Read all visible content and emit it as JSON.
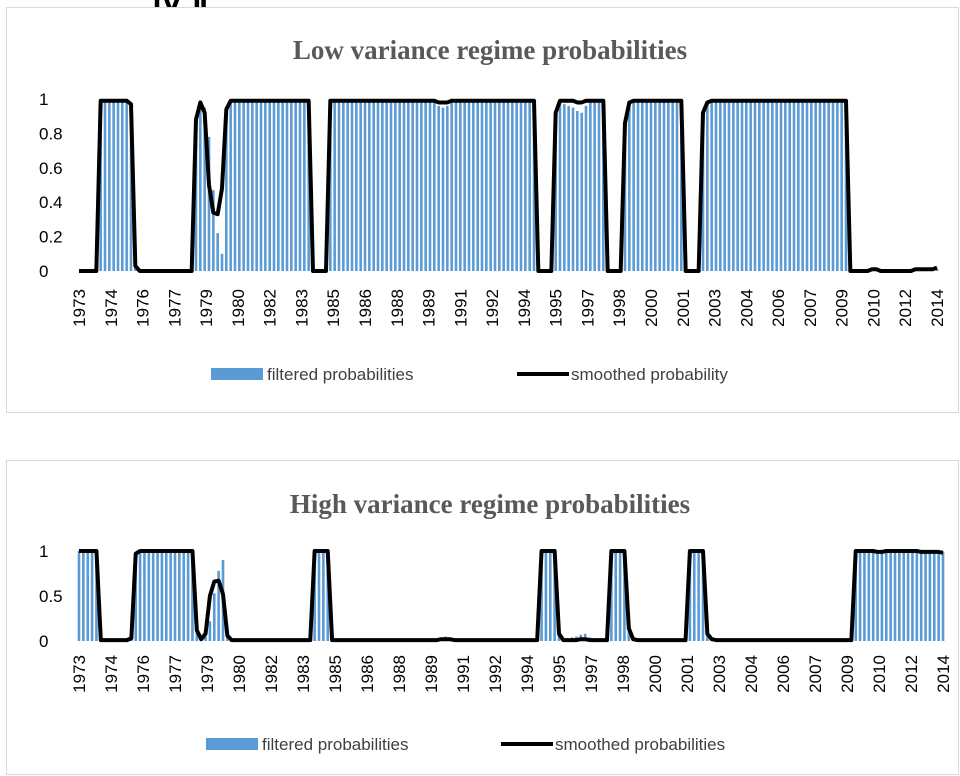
{
  "header_fragment": "Ⅳ.Ⅱ",
  "colors": {
    "bar": "#5b9bd5",
    "line": "#000000",
    "title": "#595959",
    "border": "#d9d9d9"
  },
  "chart_data": [
    {
      "type": "bar",
      "title": "Low variance regime probabilities",
      "xlabel": "",
      "ylabel": "",
      "ylim": [
        0,
        1
      ],
      "yticks": [
        "0",
        "0.2",
        "0.4",
        "0.6",
        "0.8",
        "1"
      ],
      "ytick_values": [
        0,
        0.2,
        0.4,
        0.6,
        0.8,
        1
      ],
      "x_labels": [
        "1973",
        "1974",
        "1976",
        "1977",
        "1979",
        "1980",
        "1982",
        "1983",
        "1985",
        "1986",
        "1988",
        "1989",
        "1991",
        "1992",
        "1994",
        "1995",
        "1997",
        "1998",
        "2000",
        "2001",
        "2003",
        "2004",
        "2006",
        "2007",
        "2009",
        "2010",
        "2012",
        "2014"
      ],
      "legend_position": "bottom",
      "series": [
        {
          "name": "filtered probabilities",
          "kind": "bar",
          "values": [
            0,
            0,
            0,
            0,
            0,
            0.99,
            0.99,
            0.99,
            0.99,
            0.99,
            0.99,
            0.99,
            0.97,
            0.03,
            0,
            0,
            0,
            0,
            0,
            0,
            0,
            0,
            0,
            0,
            0,
            0,
            0,
            0.9,
            0.97,
            0.95,
            0.78,
            0.47,
            0.22,
            0.1,
            0.92,
            0.98,
            0.99,
            0.99,
            0.99,
            0.99,
            0.99,
            0.99,
            0.99,
            0.99,
            0.99,
            0.99,
            0.99,
            0.99,
            0.99,
            0.99,
            0.99,
            0.99,
            0.99,
            0.99,
            0,
            0,
            0,
            0,
            0.99,
            0.99,
            0.99,
            0.99,
            0.99,
            0.99,
            0.99,
            0.99,
            0.99,
            0.99,
            0.99,
            0.99,
            0.99,
            0.99,
            0.99,
            0.99,
            0.99,
            0.99,
            0.99,
            0.99,
            0.99,
            0.99,
            0.99,
            0.99,
            0.99,
            0.96,
            0.95,
            0.96,
            0.98,
            0.99,
            0.99,
            0.99,
            0.99,
            0.99,
            0.99,
            0.99,
            0.99,
            0.99,
            0.99,
            0.99,
            0.99,
            0.99,
            0.99,
            0.99,
            0.99,
            0.99,
            0.99,
            0.99,
            0,
            0,
            0,
            0,
            0.9,
            0.98,
            0.97,
            0.96,
            0.95,
            0.93,
            0.92,
            0.96,
            0.98,
            0.99,
            0.99,
            0.99,
            0,
            0,
            0,
            0,
            0.85,
            0.96,
            0.98,
            0.99,
            0.99,
            0.99,
            0.99,
            0.99,
            0.99,
            0.99,
            0.99,
            0.99,
            0.99,
            0.99,
            0,
            0,
            0,
            0,
            0.9,
            0.97,
            0.99,
            0.99,
            0.99,
            0.99,
            0.99,
            0.99,
            0.99,
            0.99,
            0.99,
            0.99,
            0.99,
            0.99,
            0.99,
            0.99,
            0.99,
            0.99,
            0.99,
            0.99,
            0.99,
            0.99,
            0.99,
            0.99,
            0.99,
            0.99,
            0.99,
            0.99,
            0.99,
            0.99,
            0.99,
            0.99,
            0.99,
            0.99,
            0,
            0,
            0,
            0,
            0,
            0,
            0,
            0,
            0,
            0,
            0,
            0,
            0,
            0,
            0,
            0,
            0,
            0,
            0,
            0,
            0.01
          ]
        },
        {
          "name": "smoothed probability",
          "kind": "line",
          "values": [
            0,
            0,
            0,
            0,
            0,
            0.99,
            0.99,
            0.99,
            0.99,
            0.99,
            0.99,
            0.99,
            0.97,
            0.03,
            0,
            0,
            0,
            0,
            0,
            0,
            0,
            0,
            0,
            0,
            0,
            0,
            0,
            0.88,
            0.98,
            0.92,
            0.5,
            0.34,
            0.33,
            0.48,
            0.94,
            0.99,
            0.99,
            0.99,
            0.99,
            0.99,
            0.99,
            0.99,
            0.99,
            0.99,
            0.99,
            0.99,
            0.99,
            0.99,
            0.99,
            0.99,
            0.99,
            0.99,
            0.99,
            0.99,
            0,
            0,
            0,
            0,
            0.99,
            0.99,
            0.99,
            0.99,
            0.99,
            0.99,
            0.99,
            0.99,
            0.99,
            0.99,
            0.99,
            0.99,
            0.99,
            0.99,
            0.99,
            0.99,
            0.99,
            0.99,
            0.99,
            0.99,
            0.99,
            0.99,
            0.99,
            0.99,
            0.99,
            0.98,
            0.98,
            0.98,
            0.99,
            0.99,
            0.99,
            0.99,
            0.99,
            0.99,
            0.99,
            0.99,
            0.99,
            0.99,
            0.99,
            0.99,
            0.99,
            0.99,
            0.99,
            0.99,
            0.99,
            0.99,
            0.99,
            0.99,
            0,
            0,
            0,
            0,
            0.92,
            0.99,
            0.99,
            0.99,
            0.99,
            0.98,
            0.98,
            0.99,
            0.99,
            0.99,
            0.99,
            0.99,
            0,
            0,
            0,
            0,
            0.86,
            0.98,
            0.99,
            0.99,
            0.99,
            0.99,
            0.99,
            0.99,
            0.99,
            0.99,
            0.99,
            0.99,
            0.99,
            0.99,
            0,
            0,
            0,
            0,
            0.92,
            0.98,
            0.99,
            0.99,
            0.99,
            0.99,
            0.99,
            0.99,
            0.99,
            0.99,
            0.99,
            0.99,
            0.99,
            0.99,
            0.99,
            0.99,
            0.99,
            0.99,
            0.99,
            0.99,
            0.99,
            0.99,
            0.99,
            0.99,
            0.99,
            0.99,
            0.99,
            0.99,
            0.99,
            0.99,
            0.99,
            0.99,
            0.99,
            0.99,
            0,
            0,
            0,
            0,
            0,
            0.01,
            0.01,
            0,
            0,
            0,
            0,
            0,
            0,
            0,
            0,
            0.01,
            0.01,
            0.01,
            0.01,
            0.01,
            0.02
          ]
        }
      ]
    },
    {
      "type": "bar",
      "title": "High variance regime probabilities",
      "xlabel": "",
      "ylabel": "",
      "ylim": [
        0,
        1
      ],
      "yticks": [
        "0",
        "0.5",
        "1"
      ],
      "ytick_values": [
        0,
        0.5,
        1
      ],
      "x_labels": [
        "1973",
        "1974",
        "1976",
        "1977",
        "1979",
        "1980",
        "1982",
        "1983",
        "1985",
        "1986",
        "1988",
        "1989",
        "1991",
        "1992",
        "1994",
        "1995",
        "1997",
        "1998",
        "2000",
        "2001",
        "2003",
        "2004",
        "2006",
        "2007",
        "2009",
        "2010",
        "2012",
        "2014"
      ],
      "legend_position": "bottom",
      "series": [
        {
          "name": "filtered probabilities",
          "kind": "bar",
          "values": [
            1,
            1,
            1,
            1,
            1,
            0.01,
            0.01,
            0.01,
            0.01,
            0.01,
            0.01,
            0.01,
            0.03,
            0.97,
            1,
            1,
            1,
            1,
            1,
            1,
            1,
            1,
            1,
            1,
            1,
            1,
            1,
            0.1,
            0.03,
            0.05,
            0.22,
            0.53,
            0.78,
            0.9,
            0.08,
            0.02,
            0.01,
            0.01,
            0.01,
            0.01,
            0.01,
            0.01,
            0.01,
            0.01,
            0.01,
            0.01,
            0.01,
            0.01,
            0.01,
            0.01,
            0.01,
            0.01,
            0.01,
            0.01,
            1,
            1,
            1,
            1,
            0.01,
            0.01,
            0.01,
            0.01,
            0.01,
            0.01,
            0.01,
            0.01,
            0.01,
            0.01,
            0.01,
            0.01,
            0.01,
            0.01,
            0.01,
            0.01,
            0.01,
            0.01,
            0.01,
            0.01,
            0.01,
            0.01,
            0.01,
            0.01,
            0.01,
            0.04,
            0.05,
            0.04,
            0.02,
            0.01,
            0.01,
            0.01,
            0.01,
            0.01,
            0.01,
            0.01,
            0.01,
            0.01,
            0.01,
            0.01,
            0.01,
            0.01,
            0.01,
            0.01,
            0.01,
            0.01,
            0.01,
            0.01,
            1,
            1,
            1,
            1,
            0.1,
            0.02,
            0.03,
            0.04,
            0.05,
            0.07,
            0.08,
            0.04,
            0.02,
            0.01,
            0.01,
            0.01,
            1,
            1,
            1,
            1,
            0.15,
            0.04,
            0.02,
            0.01,
            0.01,
            0.01,
            0.01,
            0.01,
            0.01,
            0.01,
            0.01,
            0.01,
            0.01,
            0.01,
            1,
            1,
            1,
            1,
            0.1,
            0.03,
            0.01,
            0.01,
            0.01,
            0.01,
            0.01,
            0.01,
            0.01,
            0.01,
            0.01,
            0.01,
            0.01,
            0.01,
            0.01,
            0.01,
            0.01,
            0.01,
            0.01,
            0.01,
            0.01,
            0.01,
            0.01,
            0.01,
            0.01,
            0.01,
            0.01,
            0.01,
            0.01,
            0.01,
            0.01,
            0.01,
            0.01,
            0.01,
            1,
            1,
            1,
            1,
            1,
            1,
            1,
            1,
            1,
            1,
            1,
            1,
            1,
            1,
            1,
            1,
            1,
            1,
            1,
            1,
            0.99
          ]
        },
        {
          "name": "smoothed probabilities",
          "kind": "line",
          "values": [
            1,
            1,
            1,
            1,
            1,
            0.01,
            0.01,
            0.01,
            0.01,
            0.01,
            0.01,
            0.01,
            0.03,
            0.97,
            1,
            1,
            1,
            1,
            1,
            1,
            1,
            1,
            1,
            1,
            1,
            1,
            1,
            0.12,
            0.02,
            0.08,
            0.5,
            0.66,
            0.67,
            0.52,
            0.06,
            0.01,
            0.01,
            0.01,
            0.01,
            0.01,
            0.01,
            0.01,
            0.01,
            0.01,
            0.01,
            0.01,
            0.01,
            0.01,
            0.01,
            0.01,
            0.01,
            0.01,
            0.01,
            0.01,
            1,
            1,
            1,
            1,
            0.01,
            0.01,
            0.01,
            0.01,
            0.01,
            0.01,
            0.01,
            0.01,
            0.01,
            0.01,
            0.01,
            0.01,
            0.01,
            0.01,
            0.01,
            0.01,
            0.01,
            0.01,
            0.01,
            0.01,
            0.01,
            0.01,
            0.01,
            0.01,
            0.01,
            0.02,
            0.02,
            0.02,
            0.01,
            0.01,
            0.01,
            0.01,
            0.01,
            0.01,
            0.01,
            0.01,
            0.01,
            0.01,
            0.01,
            0.01,
            0.01,
            0.01,
            0.01,
            0.01,
            0.01,
            0.01,
            0.01,
            0.01,
            1,
            1,
            1,
            1,
            0.08,
            0.01,
            0.01,
            0.01,
            0.01,
            0.02,
            0.02,
            0.01,
            0.01,
            0.01,
            0.01,
            0.01,
            1,
            1,
            1,
            1,
            0.14,
            0.02,
            0.01,
            0.01,
            0.01,
            0.01,
            0.01,
            0.01,
            0.01,
            0.01,
            0.01,
            0.01,
            0.01,
            0.01,
            1,
            1,
            1,
            1,
            0.08,
            0.02,
            0.01,
            0.01,
            0.01,
            0.01,
            0.01,
            0.01,
            0.01,
            0.01,
            0.01,
            0.01,
            0.01,
            0.01,
            0.01,
            0.01,
            0.01,
            0.01,
            0.01,
            0.01,
            0.01,
            0.01,
            0.01,
            0.01,
            0.01,
            0.01,
            0.01,
            0.01,
            0.01,
            0.01,
            0.01,
            0.01,
            0.01,
            0.01,
            1,
            1,
            1,
            1,
            1,
            0.99,
            0.99,
            1,
            1,
            1,
            1,
            1,
            1,
            1,
            1,
            0.99,
            0.99,
            0.99,
            0.99,
            0.99,
            0.98
          ]
        }
      ]
    }
  ]
}
